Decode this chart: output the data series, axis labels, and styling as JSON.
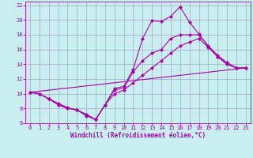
{
  "xlabel": "Windchill (Refroidissement éolien,°C)",
  "background_color": "#c8eef0",
  "grid_color": "#9999bb",
  "line_color": "#aa00aa",
  "xlim": [
    -0.5,
    23.5
  ],
  "ylim": [
    6,
    22.5
  ],
  "xticks": [
    0,
    1,
    2,
    3,
    4,
    5,
    6,
    7,
    8,
    9,
    10,
    11,
    12,
    13,
    14,
    15,
    16,
    17,
    18,
    19,
    20,
    21,
    22,
    23
  ],
  "yticks": [
    6,
    8,
    10,
    12,
    14,
    16,
    18,
    20,
    22
  ],
  "line1_x": [
    0,
    1,
    2,
    3,
    4,
    5,
    6,
    7,
    8,
    9,
    10,
    11,
    12,
    13,
    14,
    15,
    16,
    17,
    18,
    19,
    20,
    21,
    22,
    23
  ],
  "line1_y": [
    10.2,
    10.0,
    9.3,
    8.7,
    8.1,
    7.8,
    7.2,
    6.5,
    8.5,
    10.7,
    11.0,
    13.3,
    17.5,
    19.9,
    19.8,
    20.5,
    21.8,
    19.7,
    18.1,
    16.4,
    15.0,
    14.2,
    13.5,
    13.5
  ],
  "line2_x": [
    0,
    1,
    2,
    3,
    4,
    5,
    6,
    7,
    8,
    9,
    10,
    11,
    12,
    13,
    14,
    15,
    16,
    17,
    18,
    19,
    20,
    21,
    22,
    23
  ],
  "line2_y": [
    10.2,
    10.0,
    9.3,
    8.6,
    8.1,
    7.8,
    7.2,
    6.5,
    8.5,
    10.5,
    10.8,
    13.0,
    14.5,
    15.5,
    16.0,
    17.5,
    18.0,
    18.0,
    18.0,
    16.5,
    15.2,
    14.2,
    13.5,
    13.5
  ],
  "line3_x": [
    0,
    1,
    2,
    3,
    4,
    5,
    6,
    7,
    8,
    9,
    10,
    11,
    12,
    13,
    14,
    15,
    16,
    17,
    18,
    19,
    20,
    21,
    22,
    23
  ],
  "line3_y": [
    10.2,
    10.0,
    9.3,
    8.5,
    8.0,
    7.8,
    7.0,
    6.5,
    8.5,
    10.0,
    10.5,
    11.5,
    12.5,
    13.5,
    14.5,
    15.5,
    16.5,
    17.0,
    17.5,
    16.3,
    15.0,
    14.0,
    13.5,
    13.5
  ],
  "line4_x": [
    0,
    23
  ],
  "line4_y": [
    10.2,
    13.5
  ],
  "marker": "D",
  "markersize": 2.5,
  "linewidth": 0.8,
  "tick_fontsize": 5.0,
  "xlabel_fontsize": 5.5
}
